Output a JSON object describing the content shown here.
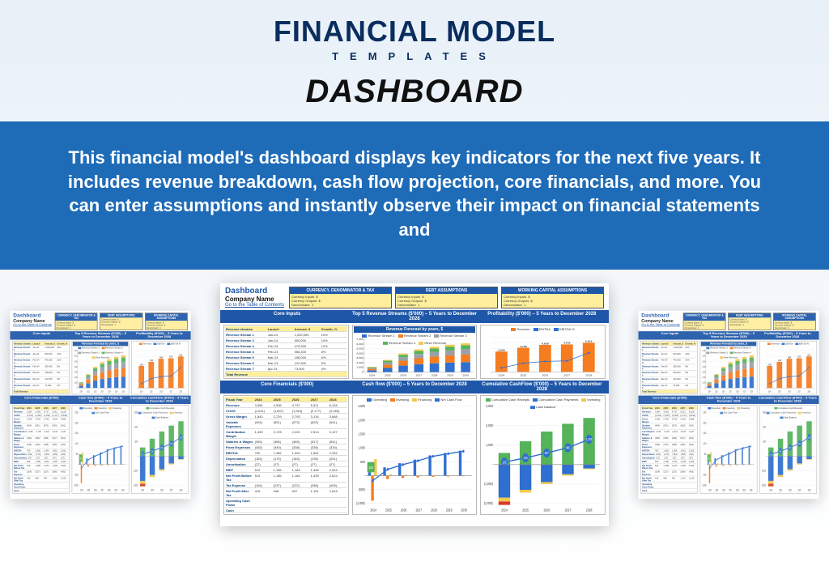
{
  "header": {
    "brand": "FINANCIAL MODEL",
    "brand_sub": "TEMPLATES",
    "page_title": "DASHBOARD",
    "description": "This financial model's dashboard displays key indicators for the next five years. It includes revenue breakdown, cash flow projection, core financials, and more. You can enter assumptions and instantly observe their impact on financial statements and"
  },
  "colors": {
    "brand_navy": "#0a2d5e",
    "band": "#1e6bb8",
    "section": "#1e57a8",
    "yellow": "#ffef9c",
    "orange": "#f57c1f",
    "blue": "#2f6fcf",
    "midblue": "#5a8fd8",
    "green": "#55b35a",
    "red": "#d73a2a",
    "grey": "#9aa0a6"
  },
  "dashboard": {
    "title": "Dashboard",
    "company": "Company Name",
    "link": "Go to the Table of Contents",
    "assumption_groups": [
      "CURRENCY, DENOMINATOR & TAX",
      "DEBT ASSUMPTIONS",
      "WORKING CAPITAL ASSUMPTIONS"
    ],
    "years": [
      "2024",
      "2025",
      "2026",
      "2027",
      "2028"
    ],
    "years_ext": [
      "2024",
      "2025",
      "2026",
      "2027",
      "2028",
      "2029",
      "2030"
    ],
    "core_inputs": {
      "title": "Core Inputs",
      "revenue_forecast": {
        "title": "Revenue Forecast by years, $",
        "ylim": [
          0,
          7000
        ],
        "ytick_step": 1000,
        "categories": [
          "2024",
          "2025",
          "2026",
          "2027",
          "2028",
          "2029",
          "2030"
        ],
        "stacks": {
          "series": [
            "Stream1",
            "Stream2",
            "Stream3",
            "Stream4",
            "Other"
          ],
          "colors": [
            "#2f6fcf",
            "#f57c1f",
            "#9aa0a6",
            "#55b35a",
            "#f2c94c"
          ],
          "values": [
            [
              400,
              300,
              200,
              150,
              80
            ],
            [
              900,
              700,
              500,
              350,
              180
            ],
            [
              1400,
              1050,
              750,
              520,
              270
            ],
            [
              1700,
              1280,
              920,
              640,
              330
            ],
            [
              1900,
              1430,
              1030,
              720,
              370
            ],
            [
              2050,
              1540,
              1110,
              770,
              400
            ],
            [
              2150,
              1620,
              1170,
              820,
              420
            ]
          ]
        },
        "legend": [
          "Revenue Stream 1",
          "Revenue Stream 2",
          "Revenue Stream 3",
          "Revenue Stream 4",
          "Other Revenue"
        ]
      },
      "table": {
        "headers": [
          "Revenue streams",
          "Launch",
          "Amount, $",
          "Growth, %"
        ],
        "rows": [
          [
            "Revenue Stream 1",
            "Jan-24",
            "1,000,000",
            "10%"
          ],
          [
            "Revenue Stream 2",
            "Jan-24",
            "500,000",
            "10%"
          ],
          [
            "Revenue Stream 3",
            "Feb-24",
            "475,300",
            "12%"
          ],
          [
            "Revenue Stream 4",
            "Feb-24",
            "356,400",
            "8%"
          ],
          [
            "Revenue Stream 5",
            "Mar-24",
            "198,000",
            "6%"
          ],
          [
            "Revenue Stream 6",
            "Mar-24",
            "122,500",
            "5%"
          ],
          [
            "Revenue Stream 7",
            "Apr-24",
            "73,000",
            "4%"
          ]
        ],
        "total_label": "Total Revenue"
      }
    },
    "top5": {
      "title": "Top 5 Revenue Streams ($'000) – 5 Years to December 2028"
    },
    "profitability": {
      "title": "Profitability ($'000) – 5 Years to December 2028",
      "legend": [
        "Revenue",
        "EBITDA",
        "EBITDA %"
      ],
      "legend_colors": [
        "#f57c1f",
        "#2f6fcf",
        "#2f6fcf"
      ],
      "ylim": [
        0,
        6000
      ],
      "categories": [
        "2024",
        "2025",
        "2026",
        "2027",
        "2028"
      ],
      "revenue": [
        3500,
        4158,
        4638,
        4722,
        5012
      ],
      "ebitda": [
        700,
        1500,
        1810,
        1900,
        3254
      ],
      "ebitda_pct": [
        20,
        36,
        39,
        40,
        65
      ],
      "labels": [
        "3,500",
        "4,158",
        "4,638",
        "4,722",
        "5,012"
      ],
      "ebitda_labels": [
        "",
        "",
        "",
        "",
        "3,254"
      ]
    },
    "core_financials": {
      "title": "Core Financials ($'000)",
      "headers": [
        "Fiscal Year",
        "2024",
        "2025",
        "2026",
        "2027",
        "2028"
      ],
      "rows": [
        [
          "Revenue",
          "3,354",
          "4,536",
          "4,737",
          "5,311",
          "6,128"
        ],
        [
          "COGS",
          "(1,511)",
          "(1,807)",
          "(1,944)",
          "(2,177)",
          "(2,460)"
        ],
        [
          "Gross Margin",
          "1,843",
          "2,729",
          "2,793",
          "3,134",
          "3,668"
        ],
        [
          "Variable Expenses",
          "(404)",
          "(551)",
          "(572)",
          "(620)",
          "(541)"
        ],
        [
          "Contribution Margin",
          "1,439",
          "2,178",
          "2,221",
          "2,514",
          "3,127"
        ],
        [
          "Salaries & Wages",
          "(394)",
          "(456)",
          "(489)",
          "(517)",
          "(541)"
        ],
        [
          "Fixed Expenses",
          "(345)",
          "(340)",
          "(338)",
          "(336)",
          "(334)"
        ],
        [
          "EBITDA",
          "700",
          "1,382",
          "1,394",
          "1,661",
          "2,252"
        ],
        [
          "Depreciation",
          "(154)",
          "(170)",
          "(183)",
          "(195)",
          "(201)"
        ],
        [
          "Amortisation",
          "(27)",
          "(27)",
          "(27)",
          "(27)",
          "(27)"
        ],
        [
          "EBIT",
          "519",
          "1,185",
          "1,184",
          "1,439",
          "2,024"
        ],
        [
          "Net Profit Before Tax",
          "519",
          "1,185",
          "1,184",
          "1,439",
          "2,024"
        ],
        [
          "Tax Expense",
          "(104)",
          "(237)",
          "(237)",
          "(288)",
          "(405)"
        ],
        [
          "Net Profit After Tax",
          "415",
          "948",
          "947",
          "1,151",
          "1,619"
        ],
        [
          "Operating Cash Flows",
          "",
          "",
          "",
          "",
          ""
        ],
        [
          "Cash",
          "",
          "",
          "",
          "",
          ""
        ]
      ]
    },
    "cash_flow": {
      "title": "Cash flow ($'000) – 5 Years to December 2028",
      "legend": [
        "Operating",
        "Investing",
        "Financing",
        "Net Cash Flow"
      ],
      "legend_colors": [
        "#2f6fcf",
        "#f57c1f",
        "#f2c94c",
        "#2f6fcf"
      ],
      "ylim": [
        -1000,
        2500
      ],
      "ytick_step": 500,
      "categories": [
        "2024",
        "2025",
        "2026",
        "2027",
        "2028",
        "2029",
        "2030"
      ],
      "operating": [
        120,
        300,
        450,
        580,
        730,
        820,
        900
      ],
      "investing": [
        -900,
        -120,
        -80,
        -60,
        -40,
        -30,
        -20
      ],
      "financing": [
        600,
        50,
        30,
        20,
        10,
        5,
        0
      ],
      "net": [
        -180,
        230,
        400,
        540,
        700,
        795,
        880
      ],
      "first_label": "120"
    },
    "cumulative_cf": {
      "title": "Cumulative CashFlow ($'000) – 5 Years to December 2028",
      "legend": [
        "Cumulative Cash Receipts",
        "Cumulative Cash Payments",
        "Investing",
        "Cash Balance"
      ],
      "legend_colors": [
        "#55b35a",
        "#2f6fcf",
        "#f2c94c",
        "#2f6fcf"
      ],
      "ylim": [
        -2000,
        3000
      ],
      "ytick_step": 1000,
      "categories": [
        "2024",
        "2025",
        "2026",
        "2027",
        "2028"
      ],
      "receipts_pos": [
        600,
        1200,
        1700,
        2100,
        2400
      ],
      "payments_neg": [
        -1700,
        -1300,
        -900,
        -500,
        -200
      ],
      "invest_neg": [
        -200,
        -140,
        -100,
        -70,
        -40
      ],
      "balance": [
        125,
        346,
        597,
        865,
        1303
      ],
      "balance_labels": [
        "125",
        "346",
        "597",
        "865",
        "1,303"
      ]
    }
  }
}
